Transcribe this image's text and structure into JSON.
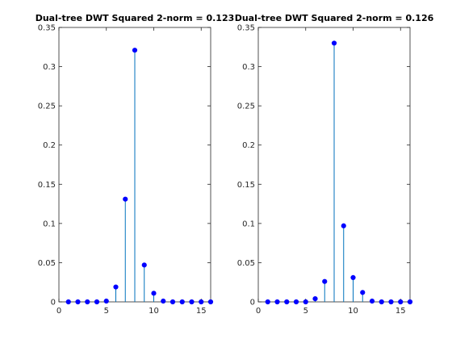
{
  "chart_data": [
    {
      "type": "stem",
      "title": "Dual-tree DWT Squared 2-norm = 0.123",
      "x": [
        1,
        2,
        3,
        4,
        5,
        6,
        7,
        8,
        9,
        10,
        11,
        12,
        13,
        14,
        15,
        16
      ],
      "values": [
        0.0,
        0.0,
        0.0,
        0.0,
        0.001,
        0.019,
        0.131,
        0.321,
        0.047,
        0.011,
        0.001,
        0.0,
        0.0,
        0.0,
        0.0,
        0.0
      ],
      "xlim": [
        0,
        16
      ],
      "ylim": [
        0,
        0.35
      ],
      "xticks": [
        0,
        5,
        10,
        15
      ],
      "yticks": [
        0,
        0.05,
        0.1,
        0.15,
        0.2,
        0.25,
        0.3,
        0.35
      ],
      "xtick_labels": [
        "0",
        "5",
        "10",
        "15"
      ],
      "ytick_labels": [
        "0",
        "0.05",
        "0.1",
        "0.15",
        "0.2",
        "0.25",
        "0.3",
        "0.35"
      ],
      "xlabel": "",
      "ylabel": "",
      "grid": false,
      "color": "#0072bd",
      "marker_color": "#0000ff"
    },
    {
      "type": "stem",
      "title": "Dual-tree DWT Squared 2-norm = 0.126",
      "x": [
        1,
        2,
        3,
        4,
        5,
        6,
        7,
        8,
        9,
        10,
        11,
        12,
        13,
        14,
        15,
        16
      ],
      "values": [
        0.0,
        0.0,
        0.0,
        0.0,
        0.0,
        0.004,
        0.026,
        0.33,
        0.097,
        0.031,
        0.012,
        0.001,
        0.0,
        0.0,
        0.0,
        0.0
      ],
      "xlim": [
        0,
        16
      ],
      "ylim": [
        0,
        0.35
      ],
      "xticks": [
        0,
        5,
        10,
        15
      ],
      "yticks": [
        0,
        0.05,
        0.1,
        0.15,
        0.2,
        0.25,
        0.3,
        0.35
      ],
      "xtick_labels": [
        "0",
        "5",
        "10",
        "15"
      ],
      "ytick_labels": [
        "0",
        "0.05",
        "0.1",
        "0.15",
        "0.2",
        "0.25",
        "0.3",
        "0.35"
      ],
      "xlabel": "",
      "ylabel": "",
      "grid": false,
      "color": "#0072bd",
      "marker_color": "#0000ff"
    }
  ]
}
